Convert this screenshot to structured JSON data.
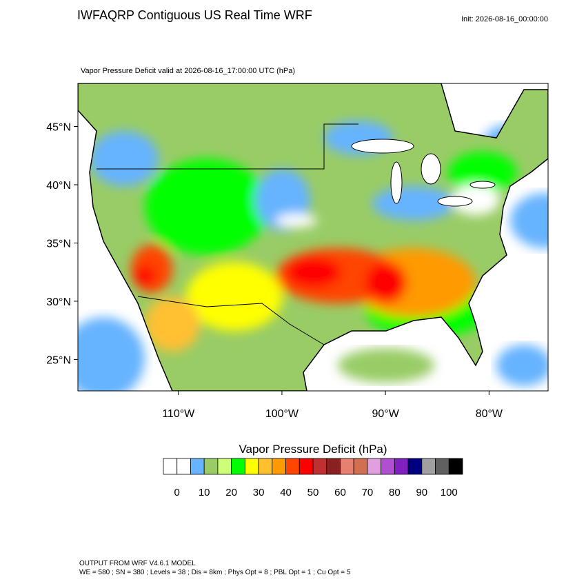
{
  "header": {
    "title": "IWFAQRP Contiguous US Real Time WRF",
    "init": "Init: 2026-08-16_00:00:00",
    "subtitle": "Vapor Pressure Deficit valid at 2026-08-16_17:00:00 UTC   (hPa)"
  },
  "map": {
    "lon_range": [
      -119.7,
      -74.3
    ],
    "lat_range": [
      22.3,
      48.7
    ],
    "lat_ticks": [
      {
        "value": 45,
        "label": "45°N"
      },
      {
        "value": 40,
        "label": "40°N"
      },
      {
        "value": 35,
        "label": "35°N"
      },
      {
        "value": 30,
        "label": "30°N"
      },
      {
        "value": 25,
        "label": "25°N"
      }
    ],
    "lon_ticks": [
      {
        "value": -110,
        "label": "110°W"
      },
      {
        "value": -100,
        "label": "100°W"
      },
      {
        "value": -90,
        "label": "90°W"
      },
      {
        "value": -80,
        "label": "80°W"
      }
    ]
  },
  "colorbar": {
    "title": "Vapor Pressure Deficit  (hPa)",
    "colors": [
      "#ffffff",
      "#ffffff",
      "#66b3ff",
      "#99cc66",
      "#ccff77",
      "#00ff00",
      "#ffff00",
      "#ffc030",
      "#ff9a00",
      "#ff4500",
      "#ff0000",
      "#c03030",
      "#8b2020",
      "#e88070",
      "#d07050",
      "#e0a0e0",
      "#b050d0",
      "#8020c0",
      "#000080",
      "#a0a0a0",
      "#606060",
      "#000000"
    ],
    "ticks": [
      0,
      10,
      20,
      30,
      40,
      50,
      60,
      70,
      80,
      90,
      100
    ]
  },
  "footer": {
    "line1": "OUTPUT FROM WRF V4.6.1 MODEL",
    "line2": "WE = 580 ; SN = 380 ; Levels = 38 ; Dis = 8km ; Phys Opt = 8 ; PBL Opt = 1 ; Cu Opt = 5"
  }
}
